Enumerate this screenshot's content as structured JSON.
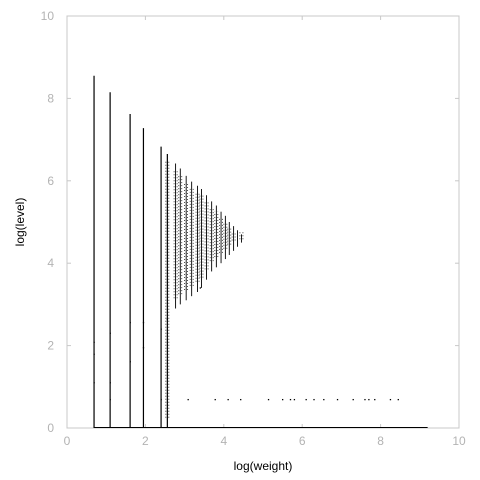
{
  "chart_data": {
    "type": "scatter",
    "title": "",
    "xlabel": "log(weight)",
    "ylabel": "log(level)",
    "xlim": [
      0,
      10
    ],
    "ylim": [
      0,
      10
    ],
    "xticks": [
      "0",
      "2",
      "4",
      "6",
      "8",
      "10"
    ],
    "yticks": [
      "0",
      "2",
      "4",
      "6",
      "8",
      "10"
    ],
    "grid": false,
    "colors": {
      "points": "#000000",
      "frame": "#c8c8c8",
      "ticks": "#b3b3b3"
    },
    "columns": [
      {
        "x": 0.69,
        "ymin": 0.0,
        "ymax": 8.55
      },
      {
        "x": 1.1,
        "ymin": 0.0,
        "ymax": 8.15
      },
      {
        "x": 1.61,
        "ymin": 0.0,
        "ymax": 7.62
      },
      {
        "x": 1.95,
        "ymin": 0.0,
        "ymax": 7.28
      },
      {
        "x": 2.4,
        "ymin": 0.0,
        "ymax": 6.83
      },
      {
        "x": 2.56,
        "ymin": 0.0,
        "ymax": 6.65
      },
      {
        "x": 2.77,
        "ymin": 2.9,
        "ymax": 6.42
      },
      {
        "x": 2.89,
        "ymin": 3.0,
        "ymax": 6.3
      },
      {
        "x": 3.04,
        "ymin": 3.1,
        "ymax": 6.12
      },
      {
        "x": 3.18,
        "ymin": 3.2,
        "ymax": 5.98
      },
      {
        "x": 3.33,
        "ymin": 3.3,
        "ymax": 5.88
      },
      {
        "x": 3.43,
        "ymin": 3.4,
        "ymax": 5.8
      },
      {
        "x": 3.56,
        "ymin": 3.6,
        "ymax": 5.65
      },
      {
        "x": 3.69,
        "ymin": 3.8,
        "ymax": 5.5
      },
      {
        "x": 3.81,
        "ymin": 3.9,
        "ymax": 5.4
      },
      {
        "x": 3.93,
        "ymin": 4.0,
        "ymax": 5.25
      },
      {
        "x": 4.04,
        "ymin": 4.1,
        "ymax": 5.15
      },
      {
        "x": 4.14,
        "ymin": 4.2,
        "ymax": 5.0
      },
      {
        "x": 4.25,
        "ymin": 4.3,
        "ymax": 4.9
      },
      {
        "x": 4.35,
        "ymin": 4.4,
        "ymax": 4.8
      },
      {
        "x": 4.45,
        "ymin": 4.5,
        "ymax": 4.7
      }
    ],
    "scattered_points": [
      {
        "x": 0.69,
        "y": 1.1
      },
      {
        "x": 0.69,
        "y": 1.79
      },
      {
        "x": 0.69,
        "y": 2.08
      },
      {
        "x": 1.1,
        "y": 1.1
      },
      {
        "x": 1.1,
        "y": 0.69
      },
      {
        "x": 1.1,
        "y": 2.3
      },
      {
        "x": 1.61,
        "y": 1.61
      },
      {
        "x": 1.61,
        "y": 2.56
      },
      {
        "x": 1.95,
        "y": 1.95
      },
      {
        "x": 1.95,
        "y": 2.56
      },
      {
        "x": 2.4,
        "y": 2.4
      },
      {
        "x": 2.4,
        "y": 0.69
      },
      {
        "x": 2.56,
        "y": 2.64
      },
      {
        "x": 3.09,
        "y": 0.69
      },
      {
        "x": 3.4,
        "y": 3.4
      },
      {
        "x": 3.78,
        "y": 0.69
      },
      {
        "x": 4.11,
        "y": 0.69
      },
      {
        "x": 4.43,
        "y": 0.69
      },
      {
        "x": 5.14,
        "y": 0.69
      },
      {
        "x": 5.5,
        "y": 0.69
      },
      {
        "x": 5.7,
        "y": 0.69
      },
      {
        "x": 5.8,
        "y": 0.69
      },
      {
        "x": 6.1,
        "y": 0.69
      },
      {
        "x": 6.3,
        "y": 0.69
      },
      {
        "x": 6.55,
        "y": 0.69
      },
      {
        "x": 6.9,
        "y": 0.69
      },
      {
        "x": 7.3,
        "y": 0.69
      },
      {
        "x": 7.6,
        "y": 0.69
      },
      {
        "x": 7.7,
        "y": 0.69
      },
      {
        "x": 7.85,
        "y": 0.69
      },
      {
        "x": 8.25,
        "y": 0.69
      },
      {
        "x": 8.45,
        "y": 0.69
      }
    ],
    "baseline": {
      "xmin": 0.69,
      "xmax": 9.2,
      "y": 0.0
    }
  }
}
